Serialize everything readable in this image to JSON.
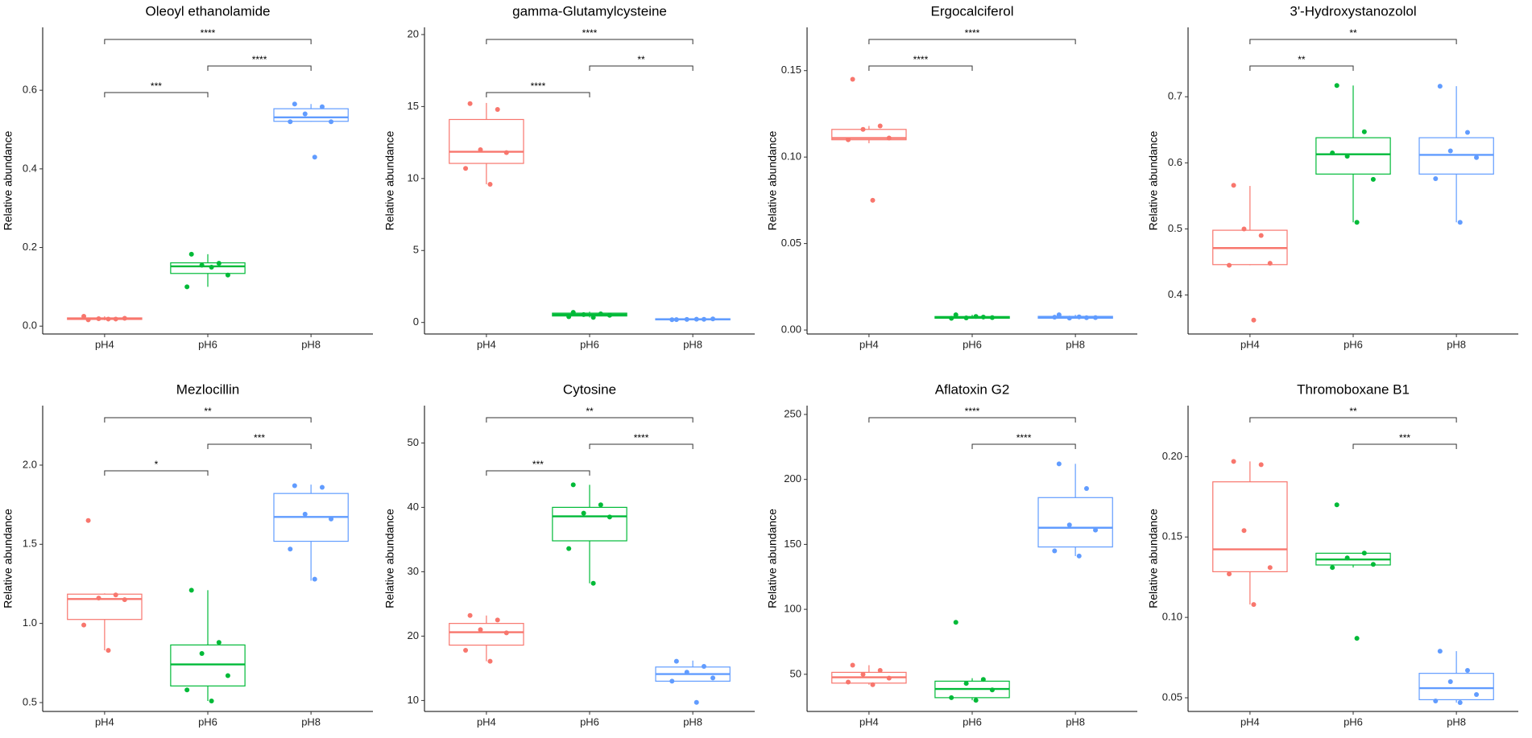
{
  "chart_data": [
    {
      "type": "box",
      "title": "Oleoyl ethanolamide",
      "y_label": "Relative abundance",
      "categories": [
        "pH4",
        "pH6",
        "pH8"
      ],
      "colors": [
        "#f8766d",
        "#00ba38",
        "#619cff"
      ],
      "ylim": [
        -0.02,
        0.76
      ],
      "yticks": [
        {
          "value": 0,
          "label": "0.0"
        },
        0.2,
        0.4,
        0.6
      ],
      "boxes": [
        {
          "min": 0.015,
          "q1": 0.017,
          "median": 0.019,
          "q3": 0.021,
          "max": 0.025,
          "points": [
            0.016,
            0.018,
            0.019,
            0.02,
            0.025,
            0.018
          ]
        },
        {
          "min": 0.1,
          "q1": 0.134,
          "median": 0.152,
          "q3": 0.161,
          "max": 0.183,
          "points": [
            0.183,
            0.16,
            0.155,
            0.13,
            0.1,
            0.15
          ]
        },
        {
          "min": 0.52,
          "q1": 0.521,
          "median": 0.531,
          "q3": 0.553,
          "max": 0.565,
          "points": [
            0.565,
            0.558,
            0.54,
            0.52,
            0.52,
            0.43
          ]
        }
      ],
      "comparisons": [
        {
          "from": "pH4",
          "to": "pH6",
          "label": "***"
        },
        {
          "from": "pH6",
          "to": "pH8",
          "label": "****"
        },
        {
          "from": "pH4",
          "to": "pH8",
          "label": "****"
        }
      ]
    },
    {
      "type": "box",
      "title": "gamma-Glutamylcysteine",
      "y_label": "Relative abundance",
      "categories": [
        "pH4",
        "pH6",
        "pH8"
      ],
      "colors": [
        "#f8766d",
        "#00ba38",
        "#619cff"
      ],
      "ylim": [
        -0.8,
        20.5
      ],
      "yticks": [
        0,
        5,
        10,
        15,
        20
      ],
      "boxes": [
        {
          "min": 9.6,
          "q1": 11.05,
          "median": 11.86,
          "q3": 14.1,
          "max": 15.25,
          "points": [
            15.2,
            14.8,
            12.0,
            11.8,
            10.7,
            9.6
          ]
        },
        {
          "min": 0.35,
          "q1": 0.45,
          "median": 0.55,
          "q3": 0.65,
          "max": 0.75,
          "points": [
            0.7,
            0.6,
            0.55,
            0.5,
            0.4,
            0.35
          ]
        },
        {
          "min": 0.15,
          "q1": 0.18,
          "median": 0.22,
          "q3": 0.26,
          "max": 0.28,
          "points": [
            0.2,
            0.22,
            0.21,
            0.25,
            0.19,
            0.23
          ]
        }
      ],
      "comparisons": [
        {
          "from": "pH4",
          "to": "pH6",
          "label": "****"
        },
        {
          "from": "pH6",
          "to": "pH8",
          "label": "**"
        },
        {
          "from": "pH4",
          "to": "pH8",
          "label": "****"
        }
      ]
    },
    {
      "type": "box",
      "title": "Ergocalciferol",
      "y_label": "Relative abundance",
      "categories": [
        "pH4",
        "pH6",
        "pH8"
      ],
      "colors": [
        "#f8766d",
        "#00ba38",
        "#619cff"
      ],
      "ylim": [
        -0.0023,
        0.175
      ],
      "yticks": [
        {
          "value": 0,
          "label": "0.00"
        },
        0.05,
        {
          "value": 0.1,
          "label": "0.10"
        },
        0.15
      ],
      "boxes": [
        {
          "min": 0.108,
          "q1": 0.11,
          "median": 0.111,
          "q3": 0.116,
          "max": 0.118,
          "points": [
            0.145,
            0.118,
            0.116,
            0.111,
            0.11,
            0.075
          ]
        },
        {
          "min": 0.0065,
          "q1": 0.0068,
          "median": 0.0073,
          "q3": 0.0078,
          "max": 0.0088,
          "points": [
            0.0088,
            0.0075,
            0.007,
            0.0072,
            0.0068,
            0.0078
          ]
        },
        {
          "min": 0.0066,
          "q1": 0.0068,
          "median": 0.0073,
          "q3": 0.0079,
          "max": 0.0088,
          "points": [
            0.0088,
            0.0071,
            0.0069,
            0.0072,
            0.0074,
            0.0076
          ]
        }
      ],
      "comparisons": [
        {
          "from": "pH4",
          "to": "pH6",
          "label": "****"
        },
        {
          "from": "pH4",
          "to": "pH8",
          "label": "****"
        }
      ]
    },
    {
      "type": "box",
      "title": "3'-Hydroxystanozolol",
      "y_label": "Relative abundance",
      "categories": [
        "pH4",
        "pH6",
        "pH8"
      ],
      "colors": [
        "#f8766d",
        "#00ba38",
        "#619cff"
      ],
      "ylim": [
        0.341,
        0.805
      ],
      "yticks": [
        0.4,
        0.5,
        0.6,
        0.7
      ],
      "boxes": [
        {
          "min": 0.445,
          "q1": 0.446,
          "median": 0.471,
          "q3": 0.498,
          "max": 0.565,
          "points": [
            0.566,
            0.49,
            0.5,
            0.448,
            0.445,
            0.362
          ]
        },
        {
          "min": 0.51,
          "q1": 0.583,
          "median": 0.613,
          "q3": 0.638,
          "max": 0.717,
          "points": [
            0.717,
            0.647,
            0.61,
            0.575,
            0.615,
            0.51
          ]
        },
        {
          "min": 0.51,
          "q1": 0.583,
          "median": 0.612,
          "q3": 0.638,
          "max": 0.716,
          "points": [
            0.716,
            0.646,
            0.618,
            0.608,
            0.576,
            0.51
          ]
        }
      ],
      "comparisons": [
        {
          "from": "pH4",
          "to": "pH6",
          "label": "**"
        },
        {
          "from": "pH4",
          "to": "pH8",
          "label": "**"
        }
      ]
    },
    {
      "type": "box",
      "title": "Mezlocillin",
      "y_label": "Relative abundance",
      "categories": [
        "pH4",
        "pH6",
        "pH8"
      ],
      "colors": [
        "#f8766d",
        "#00ba38",
        "#619cff"
      ],
      "ylim": [
        0.444,
        2.376
      ],
      "yticks": [
        0.5,
        {
          "value": 1,
          "label": "1.0"
        },
        1.5,
        {
          "value": 2,
          "label": "2.0"
        }
      ],
      "boxes": [
        {
          "min": 0.83,
          "q1": 1.025,
          "median": 1.154,
          "q3": 1.185,
          "max": 1.19,
          "points": [
            1.65,
            1.18,
            1.16,
            1.15,
            0.99,
            0.83
          ]
        },
        {
          "min": 0.51,
          "q1": 0.605,
          "median": 0.741,
          "q3": 0.864,
          "max": 1.21,
          "points": [
            1.21,
            0.88,
            0.81,
            0.67,
            0.58,
            0.51
          ]
        },
        {
          "min": 1.27,
          "q1": 1.519,
          "median": 1.673,
          "q3": 1.821,
          "max": 1.877,
          "points": [
            1.87,
            1.86,
            1.69,
            1.66,
            1.47,
            1.28
          ]
        }
      ],
      "comparisons": [
        {
          "from": "pH4",
          "to": "pH6",
          "label": "*"
        },
        {
          "from": "pH6",
          "to": "pH8",
          "label": "***"
        },
        {
          "from": "pH4",
          "to": "pH8",
          "label": "**"
        }
      ]
    },
    {
      "type": "box",
      "title": "Cytosine",
      "y_label": "Relative abundance",
      "categories": [
        "pH4",
        "pH6",
        "pH8"
      ],
      "colors": [
        "#f8766d",
        "#00ba38",
        "#619cff"
      ],
      "ylim": [
        8.3,
        55.8
      ],
      "yticks": [
        10,
        20,
        30,
        40,
        50
      ],
      "boxes": [
        {
          "min": 16.1,
          "q1": 18.6,
          "median": 20.6,
          "q3": 21.97,
          "max": 23.2,
          "points": [
            23.2,
            22.5,
            21,
            20.5,
            17.8,
            16.1
          ]
        },
        {
          "min": 28.2,
          "q1": 34.8,
          "median": 38.6,
          "q3": 40,
          "max": 43.5,
          "points": [
            43.5,
            40.4,
            39.1,
            38.5,
            33.6,
            28.2
          ]
        },
        {
          "min": 13.0,
          "q1": 13.0,
          "median": 14.1,
          "q3": 15.2,
          "max": 16.2,
          "points": [
            16.1,
            15.3,
            14.4,
            13.5,
            13.0,
            9.7
          ]
        }
      ],
      "comparisons": [
        {
          "from": "pH4",
          "to": "pH6",
          "label": "***"
        },
        {
          "from": "pH6",
          "to": "pH8",
          "label": "****"
        },
        {
          "from": "pH4",
          "to": "pH8",
          "label": "**"
        }
      ]
    },
    {
      "type": "box",
      "title": "Aflatoxin G2",
      "y_label": "Relative abundance",
      "categories": [
        "pH4",
        "pH6",
        "pH8"
      ],
      "colors": [
        "#f8766d",
        "#00ba38",
        "#619cff"
      ],
      "ylim": [
        21.4,
        256.8
      ],
      "yticks": [
        50,
        100,
        150,
        200,
        250
      ],
      "boxes": [
        {
          "min": 42,
          "q1": 43.2,
          "median": 47.7,
          "q3": 51.5,
          "max": 57,
          "points": [
            57,
            53,
            50,
            47,
            44,
            42
          ]
        },
        {
          "min": 30,
          "q1": 32,
          "median": 38.7,
          "q3": 44.7,
          "max": 47,
          "points": [
            90,
            46,
            43,
            38,
            32,
            30
          ]
        },
        {
          "min": 141,
          "q1": 148,
          "median": 162.8,
          "q3": 186,
          "max": 212,
          "points": [
            212,
            193,
            165,
            161,
            145,
            141
          ]
        }
      ],
      "comparisons": [
        {
          "from": "pH6",
          "to": "pH8",
          "label": "****"
        },
        {
          "from": "pH4",
          "to": "pH8",
          "label": "****"
        }
      ]
    },
    {
      "type": "box",
      "title": "Thromoboxane B1",
      "y_label": "Relative abundance",
      "categories": [
        "pH4",
        "pH6",
        "pH8"
      ],
      "colors": [
        "#f8766d",
        "#00ba38",
        "#619cff"
      ],
      "ylim": [
        0.0415,
        0.2317
      ],
      "yticks": [
        0.05,
        {
          "value": 0.1,
          "label": "0.10"
        },
        0.15,
        {
          "value": 0.2,
          "label": "0.20"
        }
      ],
      "boxes": [
        {
          "min": 0.108,
          "q1": 0.1284,
          "median": 0.1423,
          "q3": 0.1843,
          "max": 0.197,
          "points": [
            0.197,
            0.195,
            0.154,
            0.131,
            0.127,
            0.108
          ]
        },
        {
          "min": 0.131,
          "q1": 0.1326,
          "median": 0.136,
          "q3": 0.1399,
          "max": 0.14,
          "points": [
            0.17,
            0.14,
            0.137,
            0.133,
            0.131,
            0.087
          ]
        },
        {
          "min": 0.047,
          "q1": 0.0488,
          "median": 0.056,
          "q3": 0.0652,
          "max": 0.079,
          "points": [
            0.079,
            0.067,
            0.06,
            0.052,
            0.048,
            0.047
          ]
        }
      ],
      "comparisons": [
        {
          "from": "pH6",
          "to": "pH8",
          "label": "***"
        },
        {
          "from": "pH4",
          "to": "pH8",
          "label": "**"
        }
      ]
    }
  ]
}
